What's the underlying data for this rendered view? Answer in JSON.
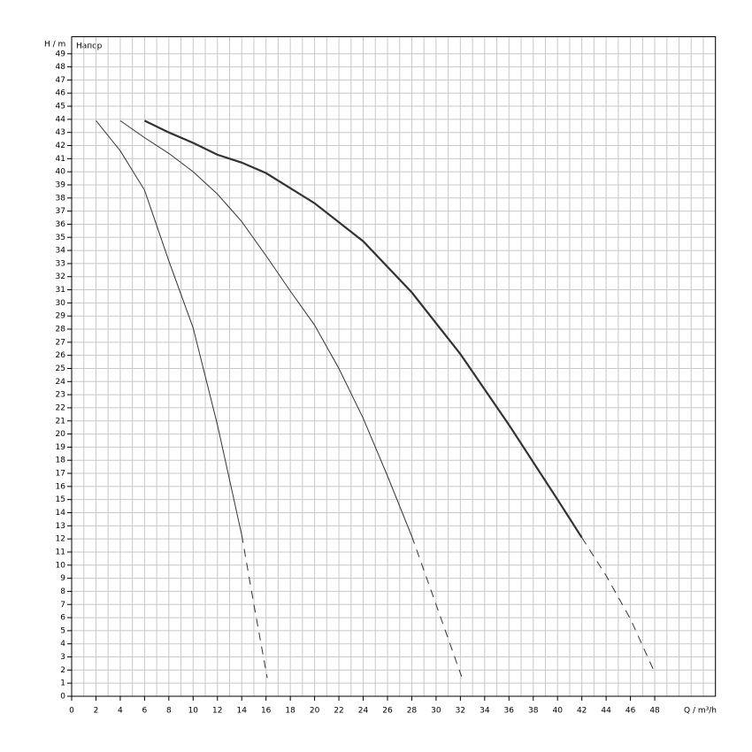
{
  "chart_data": {
    "type": "line",
    "y_label": "H / m",
    "x_label": "Q / m³/h",
    "annotation": "Напор",
    "xlim": [
      0,
      53
    ],
    "ylim": [
      0,
      50.3
    ],
    "xticks": [
      0,
      2,
      4,
      6,
      8,
      10,
      12,
      14,
      16,
      18,
      20,
      22,
      24,
      26,
      28,
      30,
      32,
      34,
      36,
      38,
      40,
      42,
      44,
      46,
      48
    ],
    "xgrid": [
      0,
      1,
      2,
      3,
      4,
      5,
      6,
      7,
      8,
      9,
      10,
      11,
      12,
      13,
      14,
      15,
      16,
      17,
      18,
      19,
      20,
      21,
      22,
      23,
      24,
      25,
      26,
      27,
      28,
      29,
      30,
      31,
      32,
      33,
      34,
      35,
      36,
      37,
      38,
      39,
      40,
      41,
      42,
      43,
      44,
      45,
      46,
      47,
      48,
      49,
      50,
      51,
      52,
      53
    ],
    "yticks": [
      0,
      1,
      2,
      3,
      4,
      5,
      6,
      7,
      8,
      9,
      10,
      11,
      12,
      13,
      14,
      15,
      16,
      17,
      18,
      19,
      20,
      21,
      22,
      23,
      24,
      25,
      26,
      27,
      28,
      29,
      30,
      31,
      32,
      33,
      34,
      35,
      36,
      37,
      38,
      39,
      40,
      41,
      42,
      43,
      44,
      45,
      46,
      47,
      48,
      49
    ],
    "grid": true,
    "series": [
      {
        "color": "#333333",
        "style": "solid",
        "width": 1,
        "x": [
          2,
          4,
          6,
          8,
          10,
          12,
          14
        ],
        "values": [
          43.9,
          41.6,
          38.6,
          33.2,
          28.1,
          20.7,
          12.3
        ]
      },
      {
        "color": "#333333",
        "style": "dashed",
        "width": 1,
        "x": [
          14,
          15,
          16.1
        ],
        "values": [
          12.3,
          7,
          1.4
        ]
      },
      {
        "color": "#333333",
        "style": "solid",
        "width": 1,
        "x": [
          4,
          6,
          8,
          10,
          12,
          14,
          16,
          18,
          20,
          22,
          24,
          26,
          28
        ],
        "values": [
          43.9,
          42.6,
          41.4,
          40,
          38.3,
          36.2,
          33.6,
          30.9,
          28.3,
          25,
          21.2,
          16.8,
          12.2
        ]
      },
      {
        "color": "#333333",
        "style": "dashed",
        "width": 1,
        "x": [
          28,
          30,
          32.1
        ],
        "values": [
          12.2,
          7,
          1.5
        ]
      },
      {
        "color": "#333333",
        "style": "solid",
        "width": 2.2,
        "x": [
          6,
          8,
          10,
          12,
          14,
          16,
          20,
          24,
          28,
          32,
          36,
          40,
          42
        ],
        "values": [
          43.9,
          43,
          42.2,
          41.3,
          40.7,
          39.9,
          37.6,
          34.7,
          30.8,
          26.1,
          20.7,
          15,
          12.1
        ]
      },
      {
        "color": "#333333",
        "style": "dashed",
        "width": 1,
        "x": [
          42,
          44,
          46,
          48
        ],
        "values": [
          12.1,
          9.2,
          5.9,
          1.8
        ]
      }
    ]
  }
}
